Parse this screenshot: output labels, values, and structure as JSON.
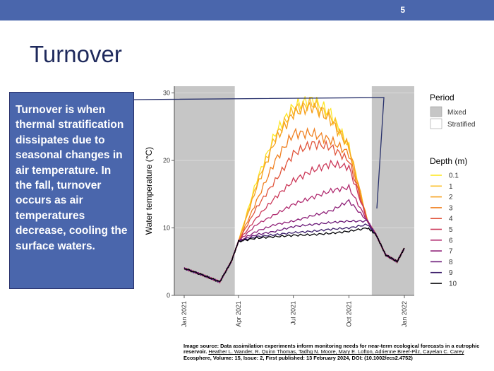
{
  "slide": {
    "number": "5",
    "title": "Turnover",
    "callout": "Turnover is when thermal stratification dissipates due to seasonal changes in air temperature. In the fall, turnover occurs as air temperatures decrease, cooling the surface waters."
  },
  "source": {
    "prefix": "Image source: Data assimilation experiments inform monitoring needs for near-term ecological forecasts in a eutrophic reservoir.",
    "authors": "Heather L. Wander, R. Quinn Thomas, Tadhg N. Moore, Mary E. Lofton, Adrienne Breef-Pilz, Cayelan C. Carey",
    "citation": "Ecosphere, Volume: 15, Issue: 2, First published: 13 February 2024, DOI: (10.1002/ecs2.4752)"
  },
  "chart_data": {
    "type": "line",
    "title": "",
    "xlabel": "",
    "ylabel": "Water temperature (°C)",
    "ylim": [
      0,
      31
    ],
    "yticks": [
      0,
      10,
      20,
      30
    ],
    "xticks": [
      "Jan 2021",
      "Apr 2021",
      "Jul 2021",
      "Oct 2021",
      "Jan 2022"
    ],
    "x": [
      "2021-01-01",
      "2021-02-01",
      "2021-03-01",
      "2021-03-20",
      "2021-04-01",
      "2021-05-01",
      "2021-06-01",
      "2021-07-01",
      "2021-08-01",
      "2021-09-01",
      "2021-10-01",
      "2021-11-01",
      "2021-11-15",
      "2021-12-01",
      "2021-12-20",
      "2022-01-01"
    ],
    "period_legend_title": "Period",
    "periods": [
      {
        "label": "Mixed",
        "color": "#c6c6c6",
        "start": "2021-01-01",
        "end": "2021-03-26"
      },
      {
        "label": "Stratified",
        "color": "#ffffff",
        "start": "2021-03-26",
        "end": "2021-11-08"
      },
      {
        "label": "Mixed",
        "color": "#c6c6c6",
        "start": "2021-11-08",
        "end": "2022-01-01"
      }
    ],
    "depth_legend_title": "Depth (m)",
    "series": [
      {
        "name": "0.1",
        "color": "#fde725",
        "values": [
          4,
          3,
          2,
          5,
          8,
          17,
          24,
          28,
          29,
          27,
          22,
          11,
          9,
          6,
          5,
          7
        ]
      },
      {
        "name": "1",
        "color": "#fbc02d",
        "values": [
          4,
          3,
          2,
          5,
          8,
          16.5,
          23.5,
          27.5,
          28.5,
          26.5,
          22,
          11,
          9,
          6,
          5,
          7
        ]
      },
      {
        "name": "2",
        "color": "#f6a11f",
        "values": [
          4,
          3,
          2,
          5,
          8,
          16,
          23,
          27,
          28,
          26,
          22,
          11,
          9,
          6,
          5,
          7
        ]
      },
      {
        "name": "3",
        "color": "#f08020",
        "values": [
          4,
          3,
          2,
          5,
          8,
          14,
          20,
          24,
          24,
          23,
          21,
          11,
          9,
          6,
          5,
          7
        ]
      },
      {
        "name": "4",
        "color": "#e0533a",
        "values": [
          4,
          3,
          2,
          5,
          8,
          13,
          17,
          21,
          22.5,
          22,
          20,
          11,
          9,
          6,
          5,
          7
        ]
      },
      {
        "name": "5",
        "color": "#cc3a5a",
        "values": [
          4,
          3,
          2,
          5,
          8,
          11.5,
          14.5,
          17,
          18.5,
          19.5,
          19,
          11,
          9,
          6,
          5,
          7
        ]
      },
      {
        "name": "6",
        "color": "#b02a6f",
        "values": [
          4,
          3,
          2,
          5,
          8,
          10.5,
          12,
          13.5,
          14.5,
          15.5,
          16,
          11,
          9,
          6,
          5,
          7
        ]
      },
      {
        "name": "7",
        "color": "#8e2078",
        "values": [
          4,
          3,
          2,
          5,
          8,
          9.5,
          10.5,
          11,
          11.8,
          12.5,
          14,
          11,
          9,
          6,
          5,
          7
        ]
      },
      {
        "name": "8",
        "color": "#6a1a78",
        "values": [
          4,
          3,
          2,
          5,
          8,
          9,
          9.5,
          10.2,
          10.5,
          10.8,
          11,
          11,
          9,
          6,
          5,
          7
        ]
      },
      {
        "name": "9",
        "color": "#3b1d6a",
        "values": [
          4,
          3,
          2,
          5,
          8,
          8.7,
          9,
          9.3,
          9.5,
          9.8,
          10,
          10.5,
          9,
          6,
          5,
          7
        ]
      },
      {
        "name": "10",
        "color": "#000004",
        "values": [
          4,
          3,
          2,
          5,
          8,
          8.5,
          8.7,
          8.9,
          9,
          9.2,
          9.5,
          10,
          9,
          6,
          5,
          7
        ]
      }
    ]
  }
}
